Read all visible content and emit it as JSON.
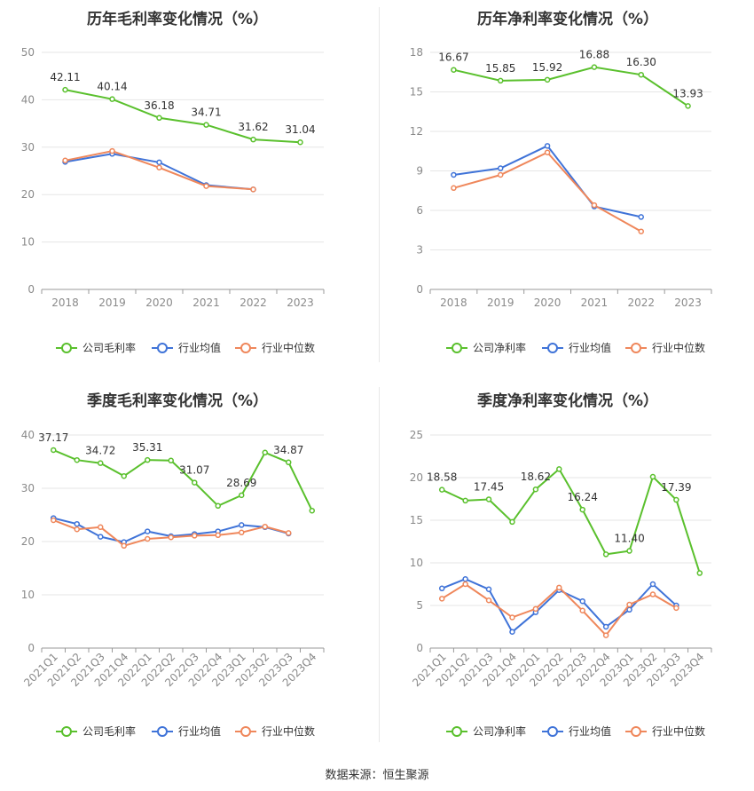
{
  "source_text": "数据来源：恒生聚源",
  "colors": {
    "company": "#5ac02d",
    "industry_avg": "#3f73d8",
    "industry_median": "#ef875b",
    "axis": "#8a8a8a",
    "grid": "#e6e6e6",
    "title": "#333333"
  },
  "chart_data": [
    {
      "type": "line",
      "title": "历年毛利率变化情况（%）",
      "categories": [
        "2018",
        "2019",
        "2020",
        "2021",
        "2022",
        "2023"
      ],
      "ylim": [
        0,
        50
      ],
      "yticks": [
        0,
        10,
        20,
        30,
        40,
        50
      ],
      "grid": true,
      "legend_position": "bottom",
      "series": [
        {
          "name": "公司毛利率",
          "values": [
            42.11,
            40.14,
            36.18,
            34.71,
            31.62,
            31.04
          ],
          "labels": [
            "42.11",
            "40.14",
            "36.18",
            "34.71",
            "31.62",
            "31.04"
          ]
        },
        {
          "name": "行业均值",
          "values": [
            26.9,
            28.6,
            26.8,
            22.0,
            21.1,
            null
          ]
        },
        {
          "name": "行业中位数",
          "values": [
            27.2,
            29.2,
            25.7,
            21.8,
            21.1,
            null
          ]
        }
      ]
    },
    {
      "type": "line",
      "title": "历年净利率变化情况（%）",
      "categories": [
        "2018",
        "2019",
        "2020",
        "2021",
        "2022",
        "2023"
      ],
      "ylim": [
        0,
        18
      ],
      "yticks": [
        0,
        3,
        6,
        9,
        12,
        15,
        18
      ],
      "grid": true,
      "legend_position": "bottom",
      "series": [
        {
          "name": "公司净利率",
          "values": [
            16.67,
            15.85,
            15.92,
            16.88,
            16.3,
            13.93
          ],
          "labels": [
            "16.67",
            "15.85",
            "15.92",
            "16.88",
            "16.30",
            "13.93"
          ]
        },
        {
          "name": "行业均值",
          "values": [
            8.7,
            9.2,
            10.9,
            6.3,
            5.5,
            null
          ]
        },
        {
          "name": "行业中位数",
          "values": [
            7.7,
            8.7,
            10.4,
            6.4,
            4.4,
            null
          ]
        }
      ]
    },
    {
      "type": "line",
      "title": "季度毛利率变化情况（%）",
      "categories": [
        "2021Q1",
        "2021Q2",
        "2021Q3",
        "2021Q4",
        "2022Q1",
        "2022Q2",
        "2022Q3",
        "2022Q4",
        "2023Q1",
        "2023Q2",
        "2023Q3",
        "2023Q4"
      ],
      "ylim": [
        0,
        40
      ],
      "yticks": [
        0,
        10,
        20,
        30,
        40
      ],
      "grid": true,
      "legend_position": "bottom",
      "series": [
        {
          "name": "公司毛利率",
          "values": [
            37.17,
            35.3,
            34.72,
            32.3,
            35.31,
            35.2,
            31.07,
            26.7,
            28.69,
            36.7,
            34.87,
            25.8
          ],
          "labels": [
            "37.17",
            null,
            "34.72",
            null,
            "35.31",
            null,
            "31.07",
            null,
            "28.69",
            null,
            "34.87",
            null
          ]
        },
        {
          "name": "行业均值",
          "values": [
            24.4,
            23.3,
            20.9,
            19.9,
            21.9,
            21.0,
            21.4,
            21.9,
            23.1,
            22.7,
            21.5,
            null
          ]
        },
        {
          "name": "行业中位数",
          "values": [
            24.0,
            22.3,
            22.7,
            19.2,
            20.5,
            20.8,
            21.1,
            21.2,
            21.7,
            22.8,
            21.6,
            null
          ]
        }
      ]
    },
    {
      "type": "line",
      "title": "季度净利率变化情况（%）",
      "categories": [
        "2021Q1",
        "2021Q2",
        "2021Q3",
        "2021Q4",
        "2022Q1",
        "2022Q2",
        "2022Q3",
        "2022Q4",
        "2023Q1",
        "2023Q2",
        "2023Q3",
        "2023Q4"
      ],
      "ylim": [
        0,
        25
      ],
      "yticks": [
        0,
        5,
        10,
        15,
        20,
        25
      ],
      "grid": true,
      "legend_position": "bottom",
      "series": [
        {
          "name": "公司净利率",
          "values": [
            18.58,
            17.3,
            17.45,
            14.8,
            18.62,
            21.0,
            16.24,
            11.0,
            11.4,
            20.1,
            17.39,
            8.8
          ],
          "labels": [
            "18.58",
            null,
            "17.45",
            null,
            "18.62",
            null,
            "16.24",
            null,
            "11.40",
            null,
            "17.39",
            null
          ]
        },
        {
          "name": "行业均值",
          "values": [
            7.0,
            8.1,
            6.9,
            1.9,
            4.2,
            6.8,
            5.5,
            2.5,
            4.5,
            7.5,
            5.0,
            null
          ]
        },
        {
          "name": "行业中位数",
          "values": [
            5.8,
            7.5,
            5.6,
            3.6,
            4.6,
            7.1,
            4.4,
            1.5,
            5.1,
            6.3,
            4.7,
            null
          ]
        }
      ]
    }
  ]
}
